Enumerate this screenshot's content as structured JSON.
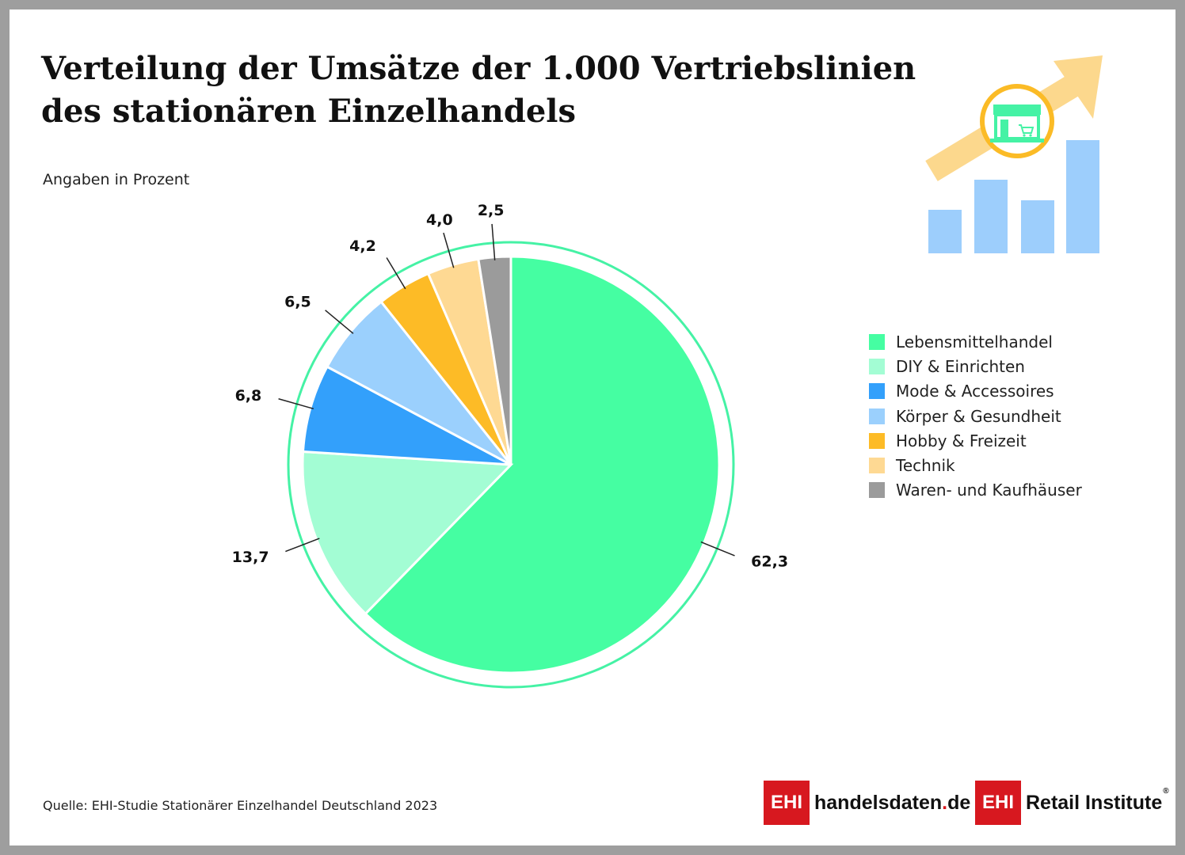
{
  "title": {
    "line1": "Verteilung der Umsätze der 1.000 Vertriebslinien",
    "line2": "des stationären Einzelhandels"
  },
  "subtitle": "Angaben in Prozent",
  "source": "Quelle: EHI-Studie Stationärer Einzelhandel Deutschland 2023",
  "logos": {
    "left_box": "EHI",
    "left_text": "handelsdaten",
    "left_dot": ".",
    "left_tld": "de",
    "right_box": "EHI",
    "right_text": "Retail Institute",
    "right_mark": "®"
  },
  "icons": [
    "upward-arrow-icon",
    "shop-icon",
    "bar-chart-icon"
  ],
  "colors": {
    "ring": "#45f2a5",
    "arrow": "#fcd88d",
    "bars": "#9dcefc",
    "shop_circle": "#fbbb26",
    "logo_red": "#d7181f"
  },
  "chart_data": {
    "type": "pie",
    "unit": "%",
    "labels": [
      "Lebensmittelhandel",
      "DIY & Einrichten",
      "Mode & Accessoires",
      "Körper & Gesundheit",
      "Hobby & Freizeit",
      "Technik",
      "Waren- und Kaufhäuser"
    ],
    "values": [
      62.3,
      13.7,
      6.8,
      6.5,
      4.2,
      4.0,
      2.5
    ],
    "value_labels": [
      "62,3",
      "13,7",
      "6,8",
      "6,5",
      "4,2",
      "4,0",
      "2,5"
    ],
    "colors": [
      "#45fea2",
      "#a3fdd4",
      "#33a0fb",
      "#9bd0fd",
      "#fdbb26",
      "#fed993",
      "#9b9b9b"
    ],
    "legend_position": "right"
  }
}
